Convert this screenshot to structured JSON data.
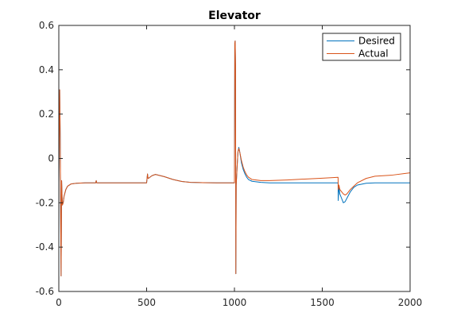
{
  "chart_data": {
    "type": "line",
    "title": "Elevator",
    "xlabel": "",
    "ylabel": "",
    "xlim": [
      0,
      2000
    ],
    "ylim": [
      -0.6,
      0.6
    ],
    "x_ticks": [
      0,
      500,
      1000,
      1500,
      2000
    ],
    "y_ticks": [
      -0.6,
      -0.4,
      -0.2,
      0,
      0.2,
      0.4,
      0.6
    ],
    "x_tick_labels": [
      "0",
      "500",
      "1000",
      "1500",
      "2000"
    ],
    "y_tick_labels": [
      "-0.6",
      "-0.4",
      "-0.2",
      "0",
      "0.2",
      "0.4",
      "0.6"
    ],
    "grid": false,
    "legend_position": "top-right",
    "series": [
      {
        "name": "Desired",
        "color": "#0072BD",
        "x": [
          0,
          3,
          5,
          8,
          10,
          13,
          16,
          20,
          25,
          30,
          40,
          50,
          70,
          100,
          150,
          200,
          210,
          213,
          216,
          300,
          400,
          500,
          505,
          508,
          510,
          530,
          550,
          600,
          650,
          700,
          750,
          800,
          900,
          1000,
          1002,
          1004,
          1006,
          1008,
          1010,
          1015,
          1020,
          1025,
          1030,
          1040,
          1050,
          1060,
          1070,
          1080,
          1100,
          1150,
          1200,
          1300,
          1400,
          1500,
          1590,
          1591,
          1593,
          1595,
          1600,
          1610,
          1620,
          1630,
          1640,
          1660,
          1680,
          1700,
          1750,
          1800,
          1900,
          2000
        ],
        "y": [
          -0.11,
          0.15,
          0.31,
          0.1,
          -0.2,
          -0.53,
          -0.1,
          -0.21,
          -0.2,
          -0.17,
          -0.14,
          -0.125,
          -0.115,
          -0.112,
          -0.11,
          -0.11,
          -0.11,
          -0.1,
          -0.11,
          -0.11,
          -0.11,
          -0.11,
          -0.07,
          -0.09,
          -0.09,
          -0.078,
          -0.072,
          -0.082,
          -0.095,
          -0.104,
          -0.108,
          -0.109,
          -0.11,
          -0.11,
          0.52,
          0.53,
          0.42,
          -0.52,
          -0.12,
          -0.04,
          0.03,
          0.05,
          0.03,
          -0.02,
          -0.05,
          -0.07,
          -0.085,
          -0.095,
          -0.103,
          -0.108,
          -0.11,
          -0.11,
          -0.11,
          -0.11,
          -0.11,
          -0.19,
          -0.15,
          -0.13,
          -0.16,
          -0.18,
          -0.2,
          -0.195,
          -0.18,
          -0.15,
          -0.13,
          -0.12,
          -0.112,
          -0.11,
          -0.11,
          -0.11
        ]
      },
      {
        "name": "Actual",
        "color": "#D95319",
        "x": [
          0,
          3,
          5,
          8,
          10,
          13,
          16,
          20,
          25,
          30,
          40,
          50,
          70,
          100,
          150,
          200,
          210,
          213,
          216,
          300,
          400,
          500,
          505,
          508,
          510,
          530,
          550,
          600,
          650,
          700,
          750,
          800,
          900,
          1000,
          1002,
          1004,
          1006,
          1008,
          1010,
          1015,
          1020,
          1025,
          1030,
          1040,
          1050,
          1060,
          1070,
          1080,
          1100,
          1150,
          1200,
          1300,
          1400,
          1500,
          1590,
          1591,
          1593,
          1595,
          1600,
          1610,
          1620,
          1630,
          1640,
          1660,
          1680,
          1700,
          1750,
          1800,
          1900,
          2000
        ],
        "y": [
          -0.11,
          0.15,
          0.31,
          0.1,
          -0.2,
          -0.53,
          -0.1,
          -0.21,
          -0.2,
          -0.17,
          -0.14,
          -0.125,
          -0.115,
          -0.112,
          -0.11,
          -0.11,
          -0.11,
          -0.1,
          -0.11,
          -0.11,
          -0.11,
          -0.11,
          -0.07,
          -0.09,
          -0.09,
          -0.078,
          -0.072,
          -0.082,
          -0.095,
          -0.104,
          -0.108,
          -0.109,
          -0.11,
          -0.11,
          0.52,
          0.53,
          0.42,
          -0.52,
          -0.12,
          -0.04,
          0.03,
          0.045,
          0.03,
          -0.01,
          -0.04,
          -0.06,
          -0.075,
          -0.085,
          -0.095,
          -0.1,
          -0.1,
          -0.097,
          -0.093,
          -0.089,
          -0.085,
          -0.14,
          -0.13,
          -0.12,
          -0.14,
          -0.15,
          -0.16,
          -0.165,
          -0.16,
          -0.14,
          -0.125,
          -0.11,
          -0.09,
          -0.08,
          -0.075,
          -0.065
        ]
      }
    ]
  }
}
